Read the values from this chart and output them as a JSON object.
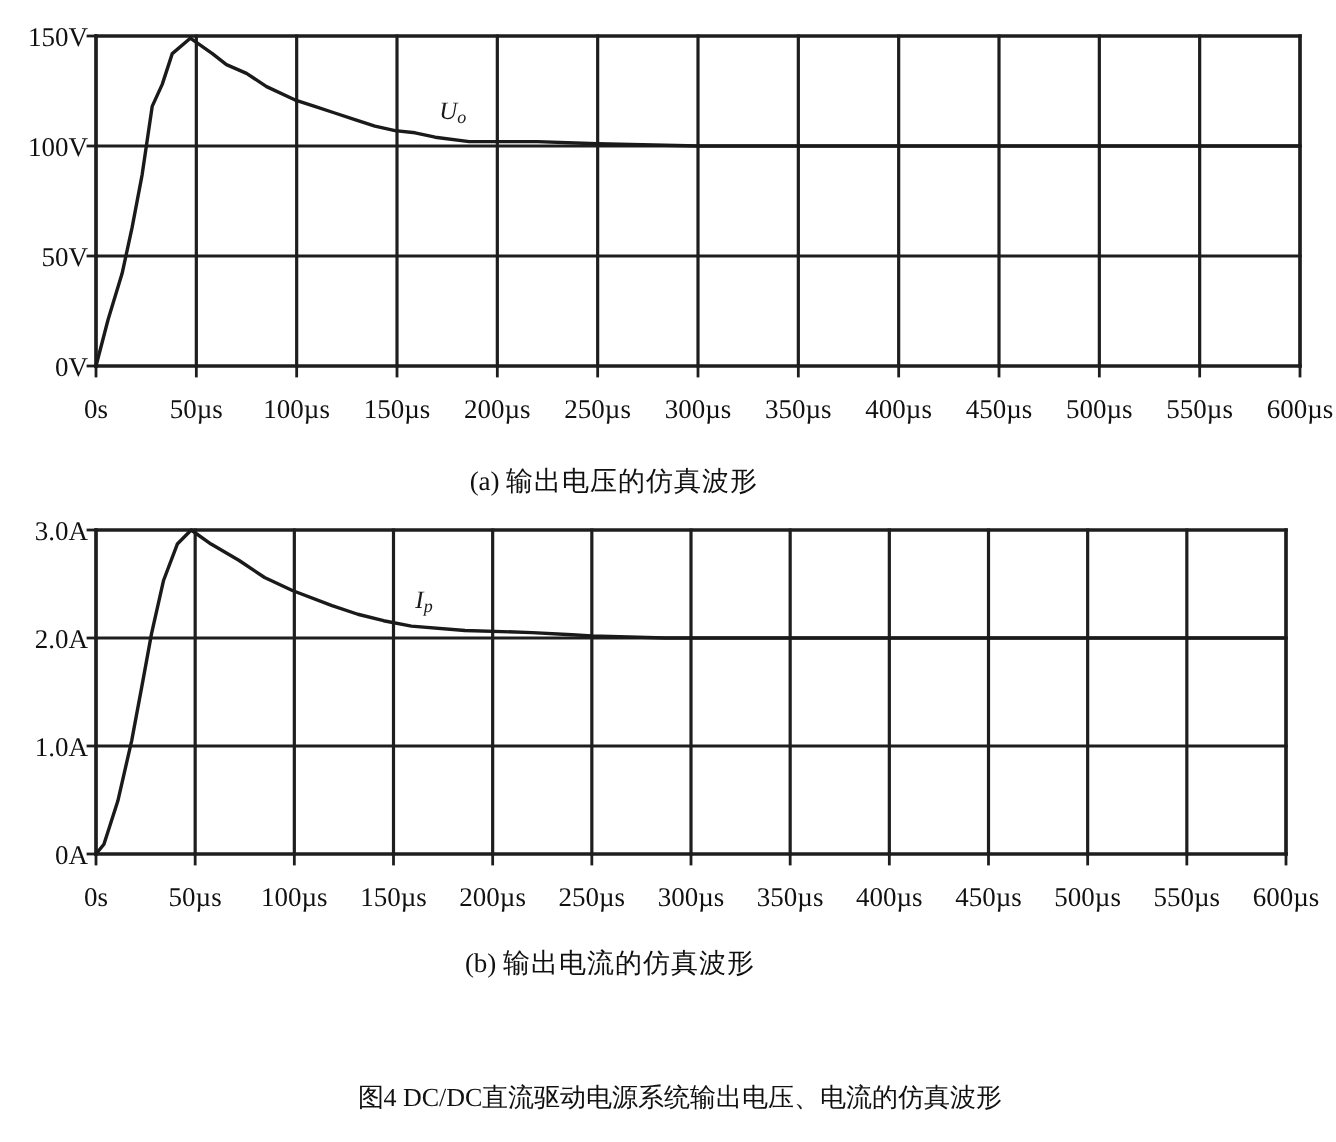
{
  "chart_data": [
    {
      "type": "line",
      "title": "(a) 输出电压的仿真波形",
      "x": [
        0,
        6,
        13,
        18,
        23,
        28,
        33,
        38,
        47,
        58,
        65,
        75,
        85,
        99,
        109,
        119,
        129,
        139,
        149,
        159,
        169,
        186,
        220,
        250,
        300,
        350,
        400,
        450,
        500,
        550,
        600
      ],
      "series": [
        {
          "name": "U$_{o}$",
          "color": "#1a1a1a",
          "values": [
            0,
            21,
            42,
            63,
            87,
            118,
            128,
            142,
            149,
            142,
            137,
            133,
            127,
            121,
            118,
            115,
            112,
            109,
            107,
            106,
            104,
            102,
            102,
            101,
            100,
            100,
            100,
            100,
            100,
            100,
            100
          ]
        }
      ],
      "xlim": [
        0,
        600
      ],
      "ylim": [
        0,
        150
      ],
      "xticks": [
        {
          "value": 0,
          "label": "0s"
        },
        {
          "value": 50,
          "label": "50µs"
        },
        {
          "value": 100,
          "label": "100µs"
        },
        {
          "value": 150,
          "label": "150µs"
        },
        {
          "value": 200,
          "label": "200µs"
        },
        {
          "value": 250,
          "label": "250µs"
        },
        {
          "value": 300,
          "label": "300µs"
        },
        {
          "value": 350,
          "label": "350µs"
        },
        {
          "value": 400,
          "label": "400µs"
        },
        {
          "value": 450,
          "label": "450µs"
        },
        {
          "value": 500,
          "label": "500µs"
        },
        {
          "value": 550,
          "label": "550µs"
        },
        {
          "value": 600,
          "label": "600µs"
        }
      ],
      "yticks": [
        {
          "value": 0,
          "label": "0V"
        },
        {
          "value": 50,
          "label": "50V"
        },
        {
          "value": 100,
          "label": "100V"
        },
        {
          "value": 150,
          "label": "150V"
        }
      ],
      "grid": true
    },
    {
      "type": "line",
      "title": "(b) 输出电流的仿真波形",
      "x": [
        0,
        4,
        11,
        18,
        23,
        28,
        34,
        41,
        48,
        58,
        72,
        85,
        99,
        119,
        132,
        145,
        159,
        186,
        220,
        240,
        250,
        287,
        300,
        350,
        400,
        450,
        500,
        550,
        600
      ],
      "series": [
        {
          "name": "I$_{p}$",
          "color": "#1a1a1a",
          "values": [
            0,
            0.09,
            0.49,
            1.05,
            1.54,
            2.04,
            2.53,
            2.87,
            3.0,
            2.87,
            2.72,
            2.56,
            2.44,
            2.3,
            2.22,
            2.16,
            2.11,
            2.07,
            2.05,
            2.03,
            2.02,
            2.0,
            2.0,
            2.0,
            2.0,
            2.0,
            2.0,
            2.0,
            2.0
          ]
        }
      ],
      "xlim": [
        0,
        600
      ],
      "ylim": [
        0,
        3
      ],
      "xticks": [
        {
          "value": 0,
          "label": "0s"
        },
        {
          "value": 50,
          "label": "50µs"
        },
        {
          "value": 100,
          "label": "100µs"
        },
        {
          "value": 150,
          "label": "150µs"
        },
        {
          "value": 200,
          "label": "200µs"
        },
        {
          "value": 250,
          "label": "250µs"
        },
        {
          "value": 300,
          "label": "300µs"
        },
        {
          "value": 350,
          "label": "350µs"
        },
        {
          "value": 400,
          "label": "400µs"
        },
        {
          "value": 450,
          "label": "450µs"
        },
        {
          "value": 500,
          "label": "500µs"
        },
        {
          "value": 550,
          "label": "550µs"
        },
        {
          "value": 600,
          "label": "600µs"
        }
      ],
      "yticks": [
        {
          "value": 0,
          "label": "0A"
        },
        {
          "value": 1,
          "label": "1.0A"
        },
        {
          "value": 2,
          "label": "2.0A"
        },
        {
          "value": 3,
          "label": "3.0A"
        }
      ],
      "grid": true,
      "annotations": [
        "图4 DC/DC直流驱动电源系统输出电压、电流的仿真波形"
      ]
    }
  ]
}
